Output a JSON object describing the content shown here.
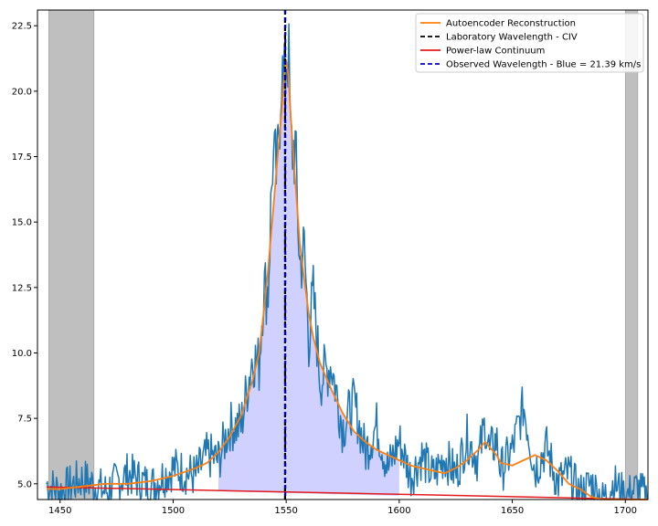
{
  "chart_data": {
    "type": "line",
    "title": "",
    "xlabel": "",
    "ylabel": "",
    "xlim": [
      1440,
      1710
    ],
    "ylim": [
      4.4,
      23.1
    ],
    "xticks": [
      1450,
      1500,
      1550,
      1600,
      1650,
      1700
    ],
    "yticks": [
      5.0,
      7.5,
      10.0,
      12.5,
      15.0,
      17.5,
      20.0,
      22.5
    ],
    "xtick_labels": [
      "1450",
      "1500",
      "1550",
      "1600",
      "1650",
      "1700"
    ],
    "ytick_labels": [
      "5.0",
      "7.5",
      "10.0",
      "12.5",
      "15.0",
      "17.5",
      "20.0",
      "22.5"
    ],
    "grid": false,
    "legend_position": "top-right",
    "masked_regions": [
      [
        1445,
        1465
      ],
      [
        1700,
        1705.5
      ]
    ],
    "colors": {
      "flux": "#1f77b4",
      "reconstruction": "#ff7f0e",
      "lab_wavelength": "#000000",
      "continuum": "#e41a1c",
      "observed_wavelength": "#0000cc",
      "fill": "#ccccff",
      "mask": "#bfbfbf"
    },
    "series": [
      {
        "name": "Autoencoder Reconstruction",
        "style": "solid",
        "x": [
          1444,
          1450,
          1460,
          1470,
          1480,
          1490,
          1500,
          1510,
          1515,
          1520,
          1525,
          1530,
          1535,
          1538,
          1540,
          1542,
          1544,
          1546,
          1548,
          1549,
          1550,
          1551,
          1552,
          1554,
          1556,
          1558,
          1560,
          1562,
          1565,
          1570,
          1575,
          1580,
          1585,
          1590,
          1595,
          1600,
          1605,
          1610,
          1615,
          1620,
          1625,
          1630,
          1635,
          1638,
          1640,
          1643,
          1645,
          1650,
          1655,
          1660,
          1665,
          1670,
          1675,
          1680,
          1685,
          1690,
          1695,
          1700,
          1705,
          1710
        ],
        "y": [
          4.8,
          4.8,
          4.9,
          5.0,
          5.0,
          5.1,
          5.3,
          5.6,
          5.8,
          6.2,
          6.8,
          7.6,
          8.9,
          10.0,
          11.5,
          13.2,
          15.2,
          17.3,
          19.2,
          20.5,
          21.2,
          20.6,
          19.0,
          16.6,
          14.2,
          12.8,
          11.5,
          10.6,
          9.6,
          8.6,
          7.7,
          7.0,
          6.6,
          6.3,
          6.1,
          5.9,
          5.7,
          5.6,
          5.5,
          5.4,
          5.6,
          5.9,
          6.3,
          6.6,
          6.4,
          6.1,
          5.8,
          5.7,
          5.9,
          6.1,
          5.9,
          5.5,
          5.0,
          4.8,
          4.5,
          4.3,
          4.3,
          4.4,
          4.4,
          4.4
        ]
      },
      {
        "name": "Laboratory Wavelength - CIV",
        "style": "dashed",
        "x": [
          1549.5,
          1549.5
        ],
        "y": [
          4.4,
          23.1
        ]
      },
      {
        "name": "Power-law Continuum",
        "style": "solid",
        "x": [
          1444,
          1710
        ],
        "y": [
          4.88,
          4.3
        ]
      },
      {
        "name": "Observed Wavelength - Blue = 21.39 km/s",
        "style": "dashed",
        "x": [
          1549.6,
          1549.6
        ],
        "y": [
          4.4,
          23.1
        ]
      },
      {
        "name": "",
        "style": "noisy",
        "x": [
          1444,
          1450,
          1460,
          1470,
          1480,
          1490,
          1500,
          1510,
          1515,
          1520,
          1525,
          1530,
          1535,
          1538,
          1540,
          1542,
          1544,
          1546,
          1548,
          1549,
          1550,
          1551,
          1552,
          1554,
          1556,
          1558,
          1560,
          1562,
          1565,
          1570,
          1575,
          1580,
          1585,
          1590,
          1595,
          1600,
          1605,
          1610,
          1615,
          1620,
          1625,
          1630,
          1635,
          1638,
          1640,
          1643,
          1645,
          1650,
          1655,
          1660,
          1665,
          1670,
          1675,
          1680,
          1685,
          1690,
          1695,
          1700,
          1705,
          1710
        ],
        "y": [
          5.2,
          4.6,
          5.5,
          4.4,
          5.8,
          4.7,
          5.9,
          5.0,
          6.4,
          5.6,
          7.6,
          6.8,
          10.8,
          9.1,
          13.5,
          11.6,
          19.5,
          16.2,
          23.0,
          18.5,
          21.7,
          22.6,
          16.8,
          18.9,
          12.6,
          15.1,
          9.7,
          13.9,
          8.4,
          10.5,
          6.6,
          9.2,
          5.8,
          8.2,
          5.0,
          7.4,
          4.9,
          6.5,
          5.0,
          6.7,
          5.1,
          7.6,
          5.5,
          8.0,
          5.9,
          7.3,
          5.2,
          6.9,
          10.1,
          5.0,
          6.9,
          4.6,
          5.8,
          4.4,
          5.6,
          4.5,
          5.8,
          4.6,
          5.3,
          4.5
        ]
      }
    ],
    "legend": [
      {
        "label": "Autoencoder Reconstruction",
        "style": "solid",
        "color_key": "reconstruction"
      },
      {
        "label": "Laboratory Wavelength - CIV",
        "style": "dashed",
        "color_key": "lab_wavelength"
      },
      {
        "label": "Power-law Continuum",
        "style": "solid",
        "color_key": "continuum"
      },
      {
        "label": "Observed Wavelength - Blue = 21.39 km/s",
        "style": "dashed",
        "color_key": "observed_wavelength"
      }
    ]
  }
}
